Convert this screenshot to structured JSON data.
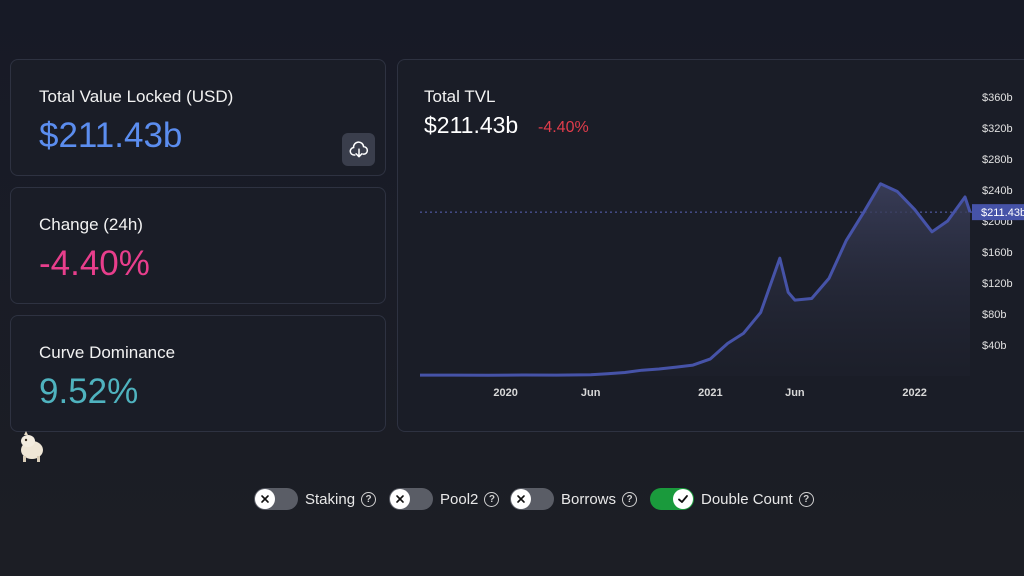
{
  "stats": {
    "tvl": {
      "label": "Total Value Locked (USD)",
      "value": "$211.43b",
      "color": "#5b8def"
    },
    "change": {
      "label": "Change (24h)",
      "value": "-4.40%",
      "color": "#e83e8c"
    },
    "dominance": {
      "label": "Curve Dominance",
      "value": "9.52%",
      "color": "#4fb3bf"
    },
    "download_icon": "cloud-download-icon"
  },
  "chart": {
    "title": "Total TVL",
    "value": "$211.43b",
    "change": "-4.40%",
    "current_label": "$211.43b",
    "line_color": "#4653a8"
  },
  "chart_data": {
    "type": "area",
    "title": "Total TVL",
    "xlabel": "",
    "ylabel": "",
    "y_ticks": [
      "$40b",
      "$80b",
      "$120b",
      "$160b",
      "$200b",
      "$240b",
      "$280b",
      "$320b",
      "$360b"
    ],
    "x_ticks": [
      "2020",
      "Jun",
      "2021",
      "Jun",
      "2022"
    ],
    "ylim": [
      0,
      370
    ],
    "current_value": 211.43,
    "series": [
      {
        "points": [
          [
            "2019-08",
            1.2
          ],
          [
            "2019-10",
            1.1
          ],
          [
            "2019-12",
            1.0
          ],
          [
            "2020-02",
            1.3
          ],
          [
            "2020-04",
            1.2
          ],
          [
            "2020-06",
            1.5
          ],
          [
            "2020-07",
            2.8
          ],
          [
            "2020-08",
            4.5
          ],
          [
            "2020-09",
            7.5
          ],
          [
            "2020-10",
            9.0
          ],
          [
            "2020-11",
            11.5
          ],
          [
            "2020-12",
            14.0
          ],
          [
            "2021-01",
            22.0
          ],
          [
            "2021-02",
            42.0
          ],
          [
            "2021-03",
            55.0
          ],
          [
            "2021-04",
            82.0
          ],
          [
            "2021-05-05",
            152.0
          ],
          [
            "2021-05-20",
            108.0
          ],
          [
            "2021-06",
            98.0
          ],
          [
            "2021-07",
            100.0
          ],
          [
            "2021-08",
            126.0
          ],
          [
            "2021-09",
            175.0
          ],
          [
            "2021-10",
            210.0
          ],
          [
            "2021-11",
            248.0
          ],
          [
            "2021-12",
            238.0
          ],
          [
            "2022-01",
            215.0
          ],
          [
            "2022-02",
            186.0
          ],
          [
            "2022-03",
            200.0
          ],
          [
            "2022-04",
            231.0
          ],
          [
            "2022-04-10",
            211.43
          ]
        ]
      }
    ]
  },
  "toggles": [
    {
      "label": "Staking",
      "on": false
    },
    {
      "label": "Pool2",
      "on": false
    },
    {
      "label": "Borrows",
      "on": false
    },
    {
      "label": "Double Count",
      "on": true
    }
  ],
  "help_glyph": "?"
}
